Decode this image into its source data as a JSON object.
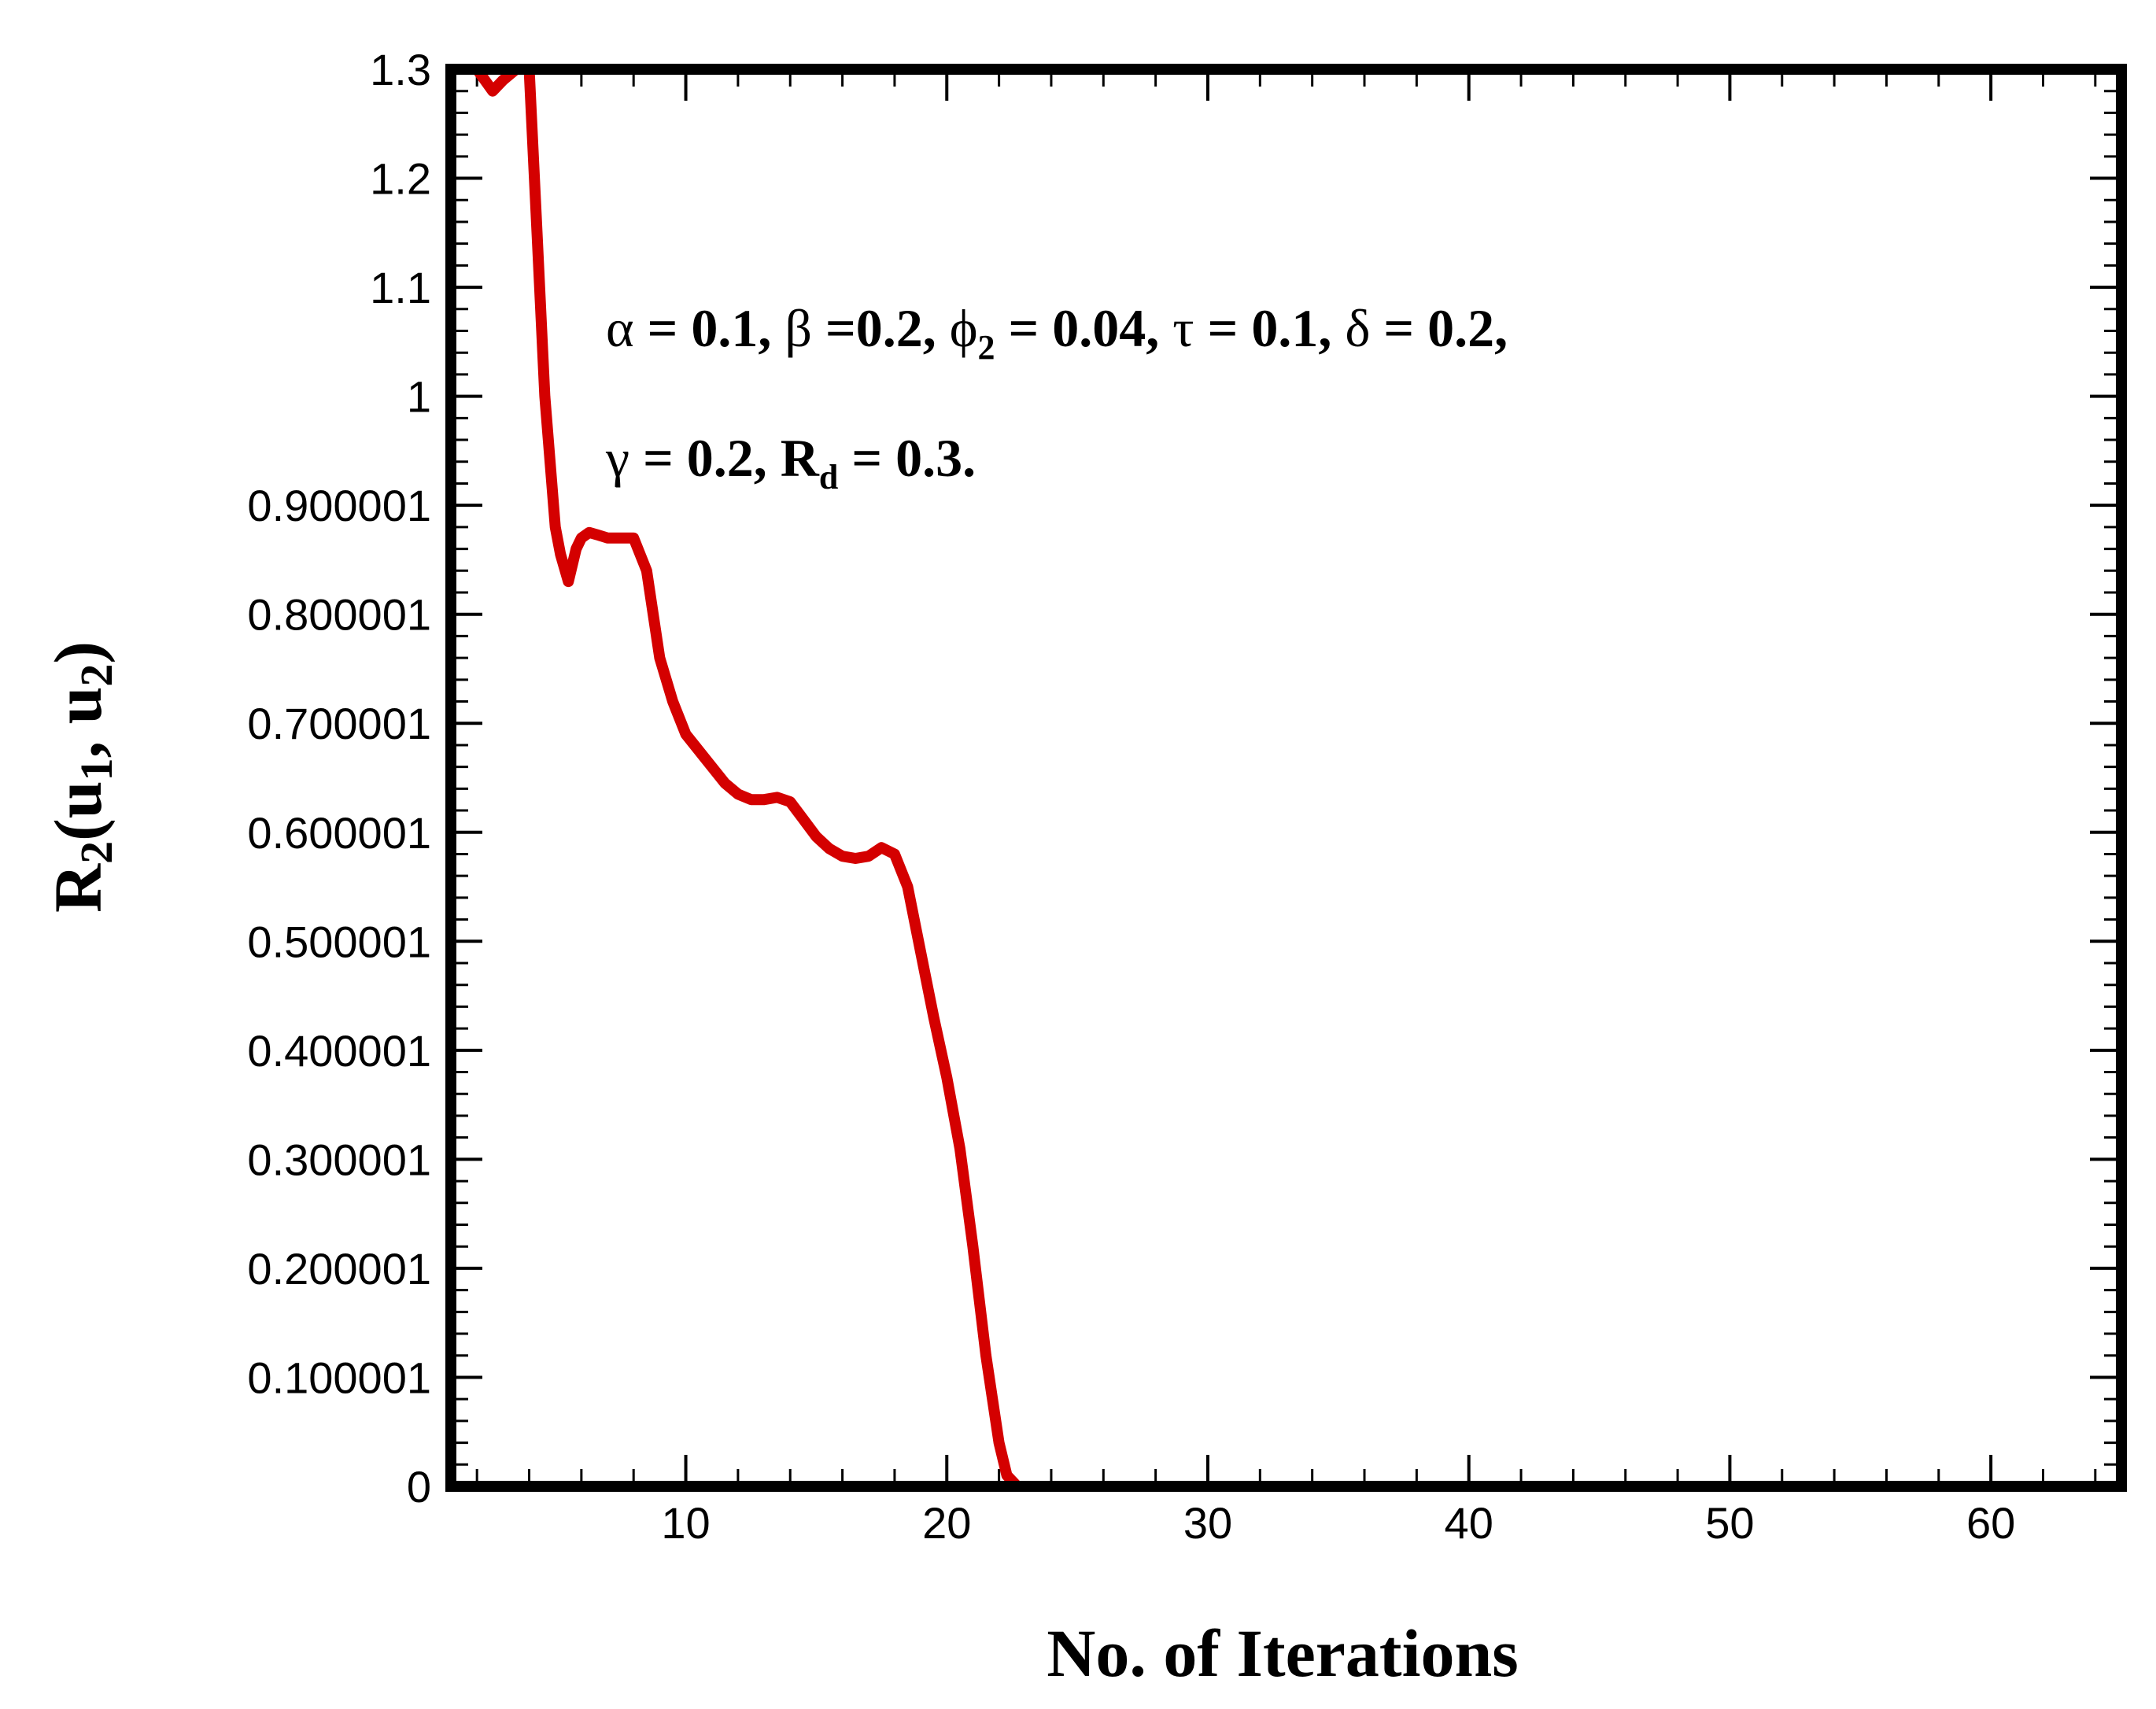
{
  "chart_data": {
    "type": "line",
    "xlabel": "No. of Iterations",
    "ylabel": {
      "main": "R",
      "sub1": "2",
      "open": "(u",
      "sub2": "1",
      "mid": ", u",
      "sub3": "2",
      "close": ")"
    },
    "xlim": [
      1,
      65
    ],
    "ylim": [
      0,
      1.3
    ],
    "x_ticks": [
      10,
      20,
      30,
      40,
      50,
      60
    ],
    "x_tick_labels": [
      "10",
      "20",
      "30",
      "40",
      "50",
      "60"
    ],
    "y_ticks": [
      0,
      0.100001,
      0.200001,
      0.300001,
      0.400001,
      0.500001,
      0.600001,
      0.700001,
      0.800001,
      0.900001,
      1,
      1.1,
      1.2,
      1.3
    ],
    "y_tick_labels": [
      "0",
      "0.100001",
      "0.200001",
      "0.300001",
      "0.400001",
      "0.500001",
      "0.600001",
      "0.700001",
      "0.800001",
      "0.900001",
      "1",
      "1.1",
      "1.2",
      "1.3"
    ],
    "grid": false,
    "series": [
      {
        "color": "#d40000",
        "x": [
          1.2,
          2,
          2.6,
          3,
          3.5,
          4,
          4.3,
          4.6,
          5,
          5.2,
          5.5,
          5.8,
          6,
          6.3,
          6.6,
          7,
          7.5,
          8,
          8.5,
          9,
          9.5,
          10,
          10.5,
          11,
          11.5,
          12,
          12.5,
          13,
          13.5,
          14,
          14.5,
          15,
          15.5,
          16,
          16.5,
          17,
          17.5,
          18,
          18.5,
          19,
          19.5,
          20,
          20.5,
          21,
          21.5,
          22,
          22.3,
          22.7,
          23,
          30,
          40,
          50,
          60,
          65
        ],
        "y": [
          1.3,
          1.3,
          1.28,
          1.29,
          1.3,
          1.3,
          1.15,
          1.0,
          0.88,
          0.855,
          0.83,
          0.86,
          0.87,
          0.875,
          0.873,
          0.87,
          0.87,
          0.87,
          0.84,
          0.76,
          0.72,
          0.69,
          0.675,
          0.66,
          0.645,
          0.635,
          0.63,
          0.63,
          0.632,
          0.628,
          0.612,
          0.596,
          0.585,
          0.578,
          0.576,
          0.578,
          0.586,
          0.58,
          0.55,
          0.49,
          0.43,
          0.375,
          0.31,
          0.22,
          0.12,
          0.04,
          0.01,
          0,
          0,
          0,
          0,
          0,
          0,
          0
        ]
      }
    ],
    "annotations": [
      {
        "line": 1,
        "parts": [
          {
            "t": "α",
            "style": "normal"
          },
          {
            "t": " = 0.1, ",
            "style": "bold"
          },
          {
            "t": "β",
            "style": "normal"
          },
          {
            "t": " =0.2, ",
            "style": "bold"
          },
          {
            "t": "ϕ",
            "style": "normal"
          },
          {
            "t": "2",
            "style": "sub"
          },
          {
            "t": " = 0.04, ",
            "style": "bold"
          },
          {
            "t": "τ",
            "style": "normal"
          },
          {
            "t": " = 0.1, ",
            "style": "bold"
          },
          {
            "t": "δ",
            "style": "normal"
          },
          {
            "t": " = 0.2,",
            "style": "bold"
          }
        ]
      },
      {
        "line": 2,
        "parts": [
          {
            "t": "γ",
            "style": "normal"
          },
          {
            "t": " = 0.2, R",
            "style": "bold"
          },
          {
            "t": "d",
            "style": "sub"
          },
          {
            "t": " = 0.3.",
            "style": "bold"
          }
        ]
      }
    ]
  }
}
